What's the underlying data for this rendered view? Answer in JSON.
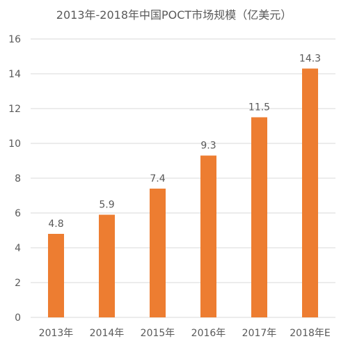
{
  "chart_data": {
    "type": "bar",
    "title": "2013年-2018年中国POCT市场规模（亿美元）",
    "categories": [
      "2013年",
      "2014年",
      "2015年",
      "2016年",
      "2017年",
      "2018年E"
    ],
    "values": [
      4.8,
      5.9,
      7.4,
      9.3,
      11.5,
      14.3
    ],
    "data_labels": [
      "4.8",
      "5.9",
      "7.4",
      "9.3",
      "11.5",
      "14.3"
    ],
    "yticks": [
      0,
      2,
      4,
      6,
      8,
      10,
      12,
      14,
      16
    ],
    "ytick_labels": [
      "0",
      "2",
      "4",
      "6",
      "8",
      "10",
      "12",
      "14",
      "16"
    ],
    "ylim": [
      0,
      16
    ],
    "grid": true,
    "legend": "none",
    "bar_color": "#ED7D31"
  }
}
